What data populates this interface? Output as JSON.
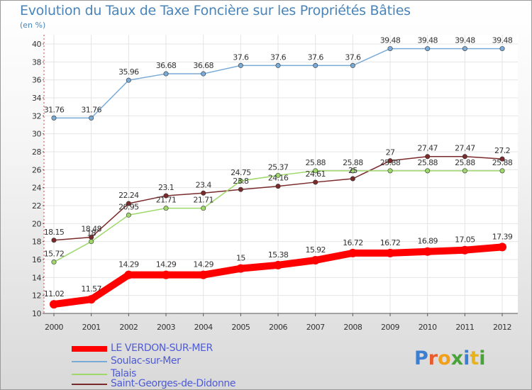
{
  "title": "Evolution du Taux de Taxe Foncière sur les Propriétés Bâties",
  "subtitle": "(en %)",
  "logo": {
    "text": "Proxiti",
    "colors": [
      "#3a7fd0",
      "#e85b2a",
      "#f2a019",
      "#49a23a",
      "#3a7fd0",
      "#e8b319",
      "#49a23a"
    ]
  },
  "chart_data": {
    "type": "line",
    "title": "Evolution du Taux de Taxe Foncière sur les Propriétés Bâties",
    "ylabel": "(en %)",
    "xlabel": "",
    "categories": [
      "2000",
      "2001",
      "2002",
      "2003",
      "2004",
      "2005",
      "2006",
      "2007",
      "2008",
      "2009",
      "2010",
      "2011",
      "2012"
    ],
    "ylim": [
      10,
      40
    ],
    "yticks": [
      "10",
      "12",
      "14",
      "16",
      "18",
      "20",
      "22",
      "24",
      "26",
      "28",
      "30",
      "32",
      "34",
      "36",
      "38",
      "40"
    ],
    "grid": true,
    "legend_position": "bottom-left",
    "series": [
      {
        "name": "LE VERDON-SUR-MER",
        "color": "#ff0000",
        "values": [
          11.02,
          11.57,
          14.29,
          14.29,
          14.29,
          15,
          15.38,
          15.92,
          16.72,
          16.72,
          16.89,
          17.05,
          17.39
        ],
        "labels": [
          "11.02",
          "11.57",
          "14.29",
          "14.29",
          "14.29",
          "15",
          "15.38",
          "15.92",
          "16.72",
          "16.72",
          "16.89",
          "17.05",
          "17.39"
        ]
      },
      {
        "name": "Soulac-sur-Mer",
        "color": "#7aaad6",
        "values": [
          31.76,
          31.76,
          35.96,
          36.68,
          36.68,
          37.6,
          37.6,
          37.6,
          37.6,
          39.48,
          39.48,
          39.48,
          39.48
        ],
        "labels": [
          "31.76",
          "31.76",
          "35.96",
          "36.68",
          "36.68",
          "37.6",
          "37.6",
          "37.6",
          "37.6",
          "39.48",
          "39.48",
          "39.48",
          "39.48"
        ]
      },
      {
        "name": "Talais",
        "color": "#9ed86b",
        "values": [
          15.72,
          18,
          20.95,
          21.71,
          21.71,
          24.75,
          25.37,
          25.88,
          25.88,
          25.88,
          25.88,
          25.88,
          25.88
        ],
        "labels": [
          "15.72",
          "18",
          "20.95",
          "21.71",
          "21.71",
          "24.75",
          "25.37",
          "25.88",
          "25.88",
          "25.88",
          "25.88",
          "25.88",
          "25.88"
        ]
      },
      {
        "name": "Saint-Georges-de-Didonne",
        "color": "#7a2a2a",
        "values": [
          18.15,
          18.48,
          22.24,
          23.1,
          23.4,
          23.8,
          24.16,
          24.61,
          25,
          27,
          27.47,
          27.47,
          27.2
        ],
        "labels": [
          "18.15",
          "18.48",
          "22.24",
          "23.1",
          "23.4",
          "23.8",
          "24.16",
          "24.61",
          "25",
          "27",
          "27.47",
          "27.47",
          "27.2"
        ]
      }
    ]
  }
}
